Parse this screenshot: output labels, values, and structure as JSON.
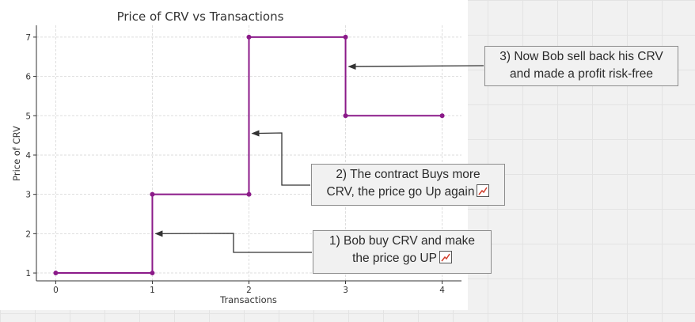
{
  "chart_data": {
    "type": "line",
    "step": true,
    "title": "Price of CRV vs Transactions",
    "xlabel": "Transactions",
    "ylabel": "Price of CRV",
    "x": [
      0,
      1,
      1,
      2,
      2,
      3,
      3,
      4
    ],
    "y": [
      1,
      1,
      3,
      3,
      7,
      7,
      5,
      5
    ],
    "xlim": [
      -0.2,
      4.2
    ],
    "ylim": [
      0.8,
      7.3
    ],
    "xticks": [
      0,
      1,
      2,
      3,
      4
    ],
    "yticks": [
      1,
      2,
      3,
      4,
      5,
      6,
      7
    ],
    "grid": true,
    "line_color": "#8b1a89",
    "series": [
      {
        "values": [
          1,
          1,
          3,
          3,
          7,
          7,
          5,
          5
        ]
      }
    ]
  },
  "annotations": [
    {
      "id": "callout-1",
      "line1": "1) Bob buy CRV and make",
      "line2": "the price go UP",
      "icon": "chart-increasing-icon",
      "point": [
        1,
        2
      ]
    },
    {
      "id": "callout-2",
      "line1": "2) The contract Buys more",
      "line2": "CRV, the price go Up again",
      "icon": "chart-increasing-icon",
      "point": [
        2,
        4.55
      ]
    },
    {
      "id": "callout-3",
      "line1": "3) Now Bob sell back his CRV",
      "line2": "and made a profit risk-free",
      "icon": null,
      "point": [
        3,
        6.25
      ]
    }
  ],
  "colors": {
    "arrow": "#333333",
    "callout_border": "#8c8c8c",
    "callout_bg": "#f1f1f1"
  }
}
